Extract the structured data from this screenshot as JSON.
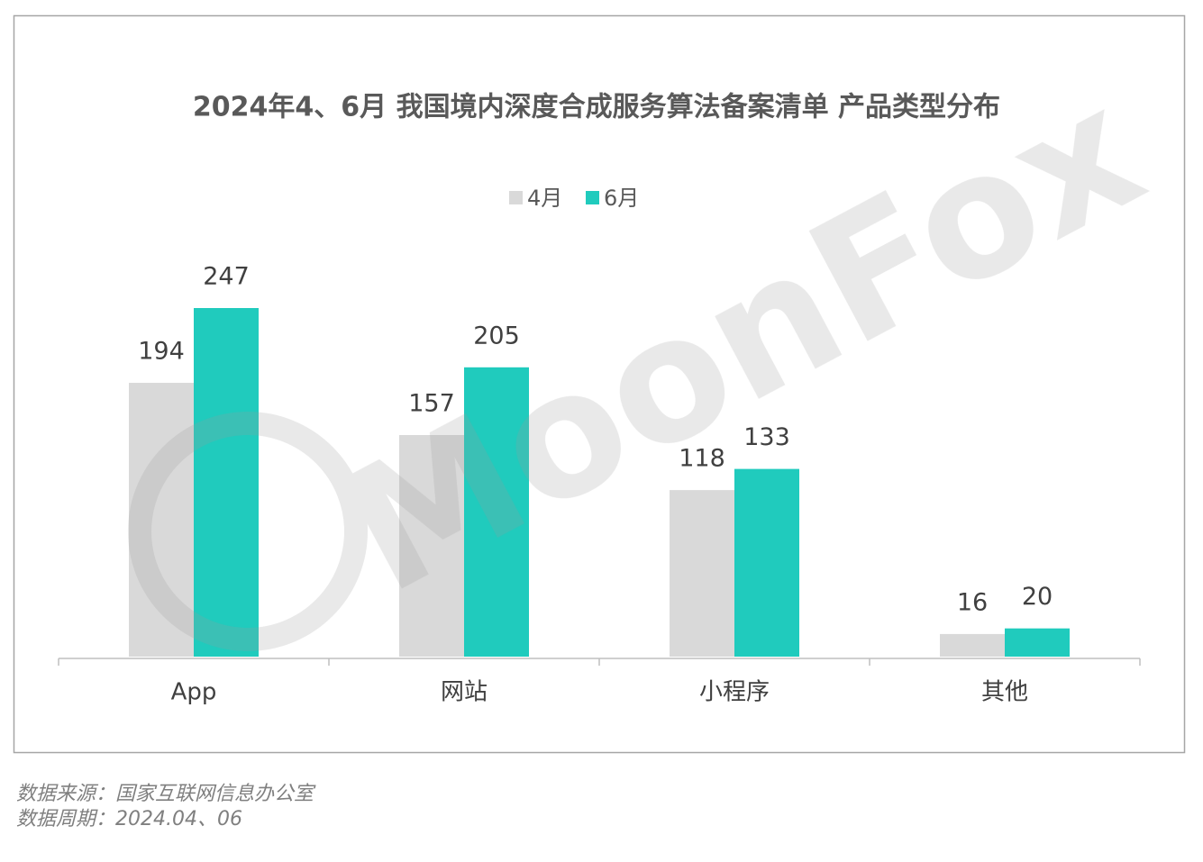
{
  "chart_data": {
    "type": "bar",
    "title": "2024年4、6月 我国境内深度合成服务算法备案清单 产品类型分布",
    "categories": [
      "App",
      "网站",
      "小程序",
      "其他"
    ],
    "series": [
      {
        "name": "4月",
        "color": "#d9d9d9",
        "values": [
          194,
          157,
          118,
          16
        ]
      },
      {
        "name": "6月",
        "color": "#20cbbd",
        "values": [
          247,
          205,
          133,
          20
        ]
      }
    ],
    "watermark": "MoonFox",
    "source": "数据来源：国家互联网信息办公室",
    "period": "数据周期：2024.04、06"
  }
}
